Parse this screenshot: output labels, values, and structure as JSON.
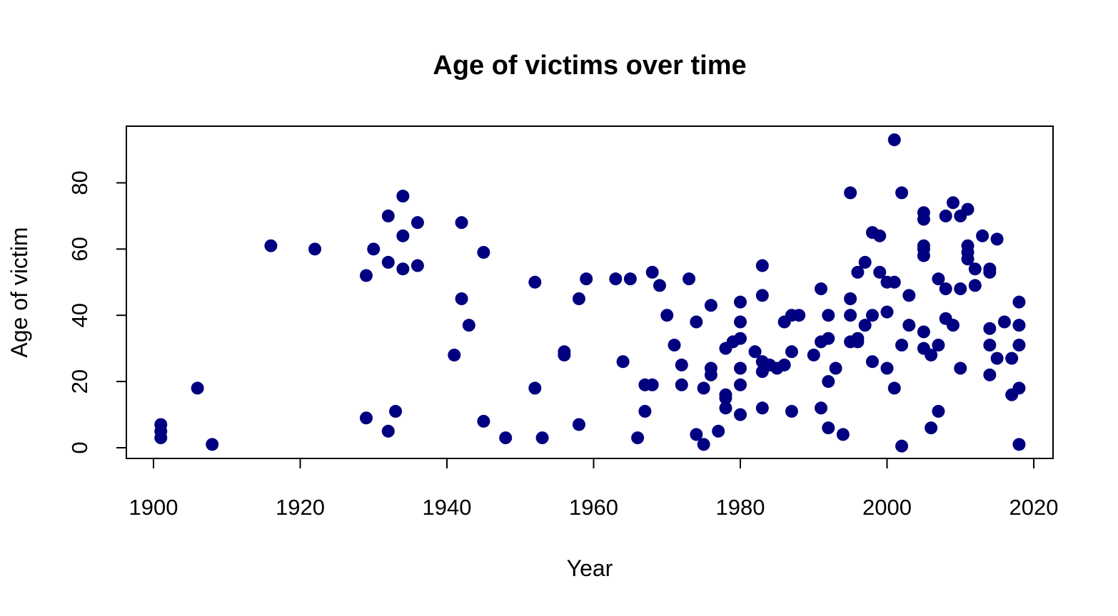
{
  "chart_data": {
    "type": "scatter",
    "title": "Age of victims over time",
    "xlabel": "Year",
    "ylabel": "Age of victim",
    "xlim": [
      1900,
      2020
    ],
    "ylim": [
      0,
      90
    ],
    "xticks": [
      1900,
      1920,
      1940,
      1960,
      1980,
      2000,
      2020
    ],
    "yticks": [
      0,
      20,
      40,
      60,
      80
    ],
    "grid": false,
    "point_color": "#000080",
    "points": [
      [
        1901,
        7
      ],
      [
        1901,
        5
      ],
      [
        1901,
        3
      ],
      [
        1906,
        18
      ],
      [
        1908,
        1
      ],
      [
        1916,
        61
      ],
      [
        1922,
        60
      ],
      [
        1929,
        52
      ],
      [
        1929,
        9
      ],
      [
        1930,
        60
      ],
      [
        1932,
        70
      ],
      [
        1932,
        56
      ],
      [
        1932,
        5
      ],
      [
        1933,
        11
      ],
      [
        1934,
        76
      ],
      [
        1934,
        64
      ],
      [
        1934,
        54
      ],
      [
        1936,
        68
      ],
      [
        1936,
        55
      ],
      [
        1941,
        28
      ],
      [
        1942,
        68
      ],
      [
        1942,
        45
      ],
      [
        1943,
        37
      ],
      [
        1945,
        59
      ],
      [
        1945,
        8
      ],
      [
        1948,
        3
      ],
      [
        1952,
        50
      ],
      [
        1952,
        18
      ],
      [
        1953,
        3
      ],
      [
        1956,
        29
      ],
      [
        1956,
        28
      ],
      [
        1958,
        45
      ],
      [
        1958,
        7
      ],
      [
        1959,
        51
      ],
      [
        1963,
        51
      ],
      [
        1964,
        26
      ],
      [
        1965,
        51
      ],
      [
        1966,
        3
      ],
      [
        1967,
        19
      ],
      [
        1967,
        11
      ],
      [
        1968,
        53
      ],
      [
        1968,
        19
      ],
      [
        1969,
        49
      ],
      [
        1970,
        40
      ],
      [
        1971,
        31
      ],
      [
        1972,
        25
      ],
      [
        1972,
        19
      ],
      [
        1973,
        51
      ],
      [
        1974,
        38
      ],
      [
        1974,
        4
      ],
      [
        1975,
        18
      ],
      [
        1975,
        1
      ],
      [
        1976,
        43
      ],
      [
        1976,
        24
      ],
      [
        1976,
        22
      ],
      [
        1977,
        5
      ],
      [
        1978,
        30
      ],
      [
        1978,
        16
      ],
      [
        1978,
        15
      ],
      [
        1978,
        12
      ],
      [
        1979,
        32
      ],
      [
        1980,
        44
      ],
      [
        1980,
        38
      ],
      [
        1980,
        33
      ],
      [
        1980,
        24
      ],
      [
        1980,
        19
      ],
      [
        1980,
        10
      ],
      [
        1982,
        29
      ],
      [
        1983,
        55
      ],
      [
        1983,
        46
      ],
      [
        1983,
        26
      ],
      [
        1983,
        23
      ],
      [
        1983,
        12
      ],
      [
        1984,
        25
      ],
      [
        1985,
        24
      ],
      [
        1986,
        38
      ],
      [
        1986,
        25
      ],
      [
        1987,
        40
      ],
      [
        1987,
        29
      ],
      [
        1987,
        11
      ],
      [
        1988,
        40
      ],
      [
        1990,
        28
      ],
      [
        1991,
        48
      ],
      [
        1991,
        32
      ],
      [
        1991,
        12
      ],
      [
        1992,
        40
      ],
      [
        1992,
        33
      ],
      [
        1992,
        20
      ],
      [
        1992,
        6
      ],
      [
        1993,
        24
      ],
      [
        1994,
        4
      ],
      [
        1995,
        77
      ],
      [
        1995,
        45
      ],
      [
        1995,
        40
      ],
      [
        1995,
        32
      ],
      [
        1996,
        53
      ],
      [
        1996,
        33
      ],
      [
        1996,
        32
      ],
      [
        1997,
        56
      ],
      [
        1997,
        37
      ],
      [
        1998,
        65
      ],
      [
        1998,
        40
      ],
      [
        1998,
        26
      ],
      [
        1999,
        64
      ],
      [
        1999,
        53
      ],
      [
        2000,
        50
      ],
      [
        2000,
        41
      ],
      [
        2000,
        24
      ],
      [
        2001,
        93
      ],
      [
        2001,
        50
      ],
      [
        2001,
        18
      ],
      [
        2002,
        77
      ],
      [
        2002,
        31
      ],
      [
        2002,
        0.5
      ],
      [
        2003,
        46
      ],
      [
        2003,
        37
      ],
      [
        2005,
        71
      ],
      [
        2005,
        69
      ],
      [
        2005,
        61
      ],
      [
        2005,
        60
      ],
      [
        2005,
        58
      ],
      [
        2005,
        35
      ],
      [
        2005,
        30
      ],
      [
        2006,
        28
      ],
      [
        2006,
        6
      ],
      [
        2007,
        51
      ],
      [
        2007,
        31
      ],
      [
        2007,
        11
      ],
      [
        2008,
        70
      ],
      [
        2008,
        48
      ],
      [
        2008,
        39
      ],
      [
        2009,
        74
      ],
      [
        2009,
        37
      ],
      [
        2010,
        70
      ],
      [
        2010,
        48
      ],
      [
        2010,
        24
      ],
      [
        2011,
        72
      ],
      [
        2011,
        61
      ],
      [
        2011,
        59
      ],
      [
        2011,
        57
      ],
      [
        2012,
        54
      ],
      [
        2012,
        49
      ],
      [
        2013,
        64
      ],
      [
        2014,
        54
      ],
      [
        2014,
        53
      ],
      [
        2014,
        36
      ],
      [
        2014,
        31
      ],
      [
        2014,
        22
      ],
      [
        2015,
        63
      ],
      [
        2015,
        27
      ],
      [
        2016,
        38
      ],
      [
        2017,
        27
      ],
      [
        2017,
        16
      ],
      [
        2018,
        44
      ],
      [
        2018,
        37
      ],
      [
        2018,
        31
      ],
      [
        2018,
        18
      ],
      [
        2018,
        1
      ]
    ]
  }
}
